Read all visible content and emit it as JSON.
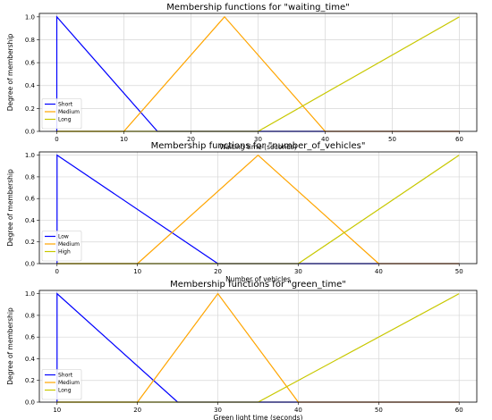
{
  "chart_data": [
    {
      "type": "line",
      "title": "Membership functions for \"waiting_time\"",
      "xlabel": "Waiting time (seconds)",
      "ylabel": "Degree of membership",
      "xlim": [
        -2.6,
        62.6
      ],
      "ylim": [
        0,
        1.03
      ],
      "xticks": [
        "0",
        "10",
        "20",
        "30",
        "40",
        "50",
        "60"
      ],
      "yticks": [
        "0.0",
        "0.2",
        "0.4",
        "0.6",
        "0.8",
        "1.0"
      ],
      "grid": true,
      "legend": "lower-left",
      "series": [
        {
          "name": "Short",
          "color": "#0000ff",
          "x": [
            0,
            0,
            15,
            60
          ],
          "y": [
            0,
            1,
            0,
            0
          ]
        },
        {
          "name": "Medium",
          "color": "#ffa500",
          "x": [
            0,
            10,
            25,
            40,
            60
          ],
          "y": [
            0,
            0,
            1,
            0,
            0
          ]
        },
        {
          "name": "Long",
          "color": "#c8c800",
          "x": [
            0,
            30,
            60
          ],
          "y": [
            0,
            0,
            1
          ]
        }
      ]
    },
    {
      "type": "line",
      "title": "Membership functions for \"number_of_vehicles\"",
      "xlabel": "Number of vehicles",
      "ylabel": "Degree of membership",
      "xlim": [
        -2.2,
        52.2
      ],
      "ylim": [
        0,
        1.03
      ],
      "xticks": [
        "0",
        "10",
        "20",
        "30",
        "40",
        "50"
      ],
      "yticks": [
        "0.0",
        "0.2",
        "0.4",
        "0.6",
        "0.8",
        "1.0"
      ],
      "grid": true,
      "legend": "lower-left",
      "series": [
        {
          "name": "Low",
          "color": "#0000ff",
          "x": [
            0,
            0,
            20,
            50
          ],
          "y": [
            0,
            1,
            0,
            0
          ]
        },
        {
          "name": "Medium",
          "color": "#ffa500",
          "x": [
            0,
            10,
            25,
            40,
            50
          ],
          "y": [
            0,
            0,
            1,
            0,
            0
          ]
        },
        {
          "name": "High",
          "color": "#c8c800",
          "x": [
            0,
            30,
            50
          ],
          "y": [
            0,
            0,
            1
          ]
        }
      ]
    },
    {
      "type": "line",
      "title": "Membership functions for \"green_time\"",
      "xlabel": "Green light time (seconds)",
      "ylabel": "Degree of membership",
      "xlim": [
        7.8,
        62.2
      ],
      "ylim": [
        0,
        1.03
      ],
      "xticks": [
        "10",
        "20",
        "30",
        "40",
        "50",
        "60"
      ],
      "yticks": [
        "0.0",
        "0.2",
        "0.4",
        "0.6",
        "0.8",
        "1.0"
      ],
      "grid": true,
      "legend": "lower-left",
      "series": [
        {
          "name": "Short",
          "color": "#0000ff",
          "x": [
            10,
            10,
            25,
            60
          ],
          "y": [
            0,
            1,
            0,
            0
          ]
        },
        {
          "name": "Medium",
          "color": "#ffa500",
          "x": [
            10,
            20,
            30,
            40,
            60
          ],
          "y": [
            0,
            0,
            1,
            0,
            0
          ]
        },
        {
          "name": "Long",
          "color": "#c8c800",
          "x": [
            10,
            35,
            60
          ],
          "y": [
            0,
            0,
            1
          ]
        }
      ]
    }
  ]
}
